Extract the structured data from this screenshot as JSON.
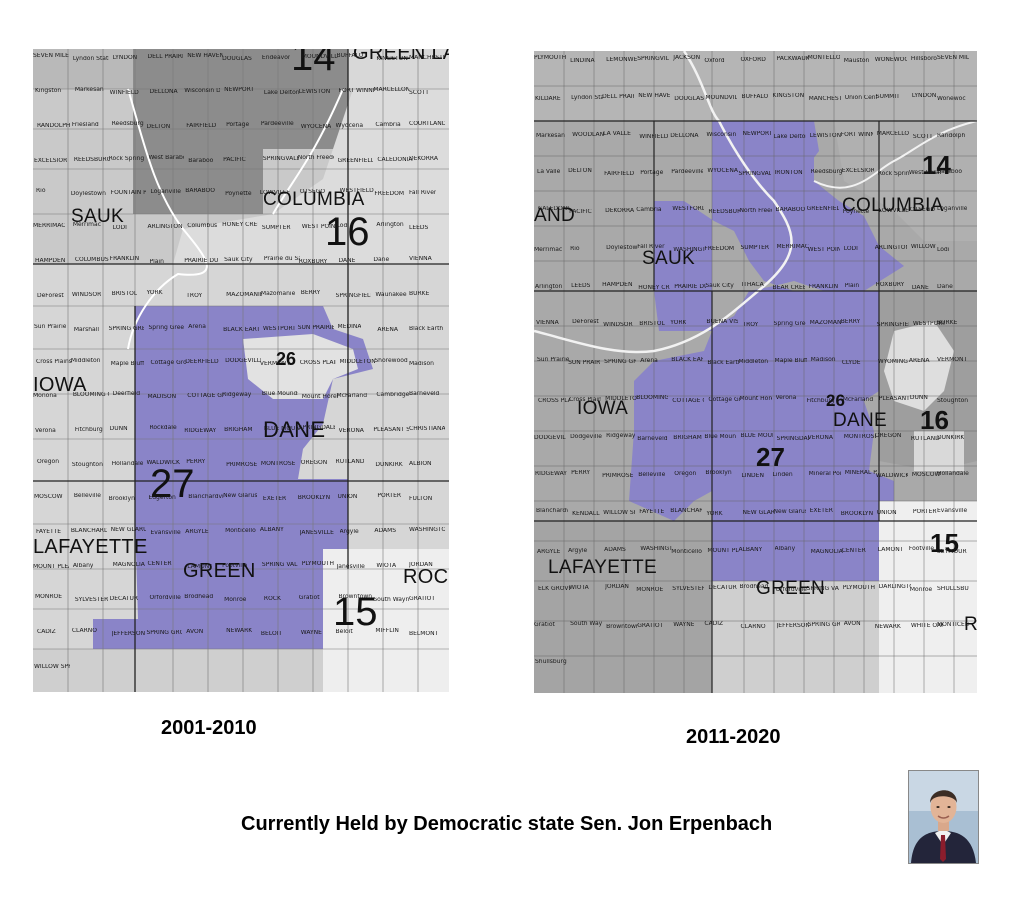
{
  "left_map": {
    "period": "2001-2010",
    "districts": [
      "14",
      "16",
      "27",
      "26",
      "15"
    ],
    "counties": [
      "SAUK",
      "COLUMBIA",
      "DANE",
      "GREEN",
      "IOWA",
      "LAFAYETTE",
      "ROCK",
      "GREEN LAKE"
    ],
    "towns": [
      "SEVEN MILE CREEK",
      "Lyndon Station",
      "LYNDON",
      "DELL PRAIRIE",
      "NEW HAVEN",
      "DOUGLAS",
      "Endeavor",
      "MOUNDVILLE",
      "BUFFALO",
      "KINGSTON",
      "MANCHESTER",
      "Kingston",
      "Markesan",
      "WINFIELD",
      "DELLONA",
      "Wisconsin Dells",
      "NEWPORT",
      "Lake Delton",
      "LEWISTON",
      "FORT WINNEBAGO",
      "MARCELLON",
      "SCOTT",
      "RANDOLPH",
      "Friesland",
      "Reedsburg",
      "DELTON",
      "FAIRFIELD",
      "Portage",
      "Pardeeville",
      "WYOCENA",
      "Wyocena",
      "Cambria",
      "COURTLAND",
      "EXCELSIOR",
      "REEDSBURG",
      "Rock Springs",
      "West Baraboo",
      "Baraboo",
      "PACIFIC",
      "SPRINGVALE",
      "North Freedom",
      "GREENFIELD",
      "CALEDONIA",
      "DEKORRA",
      "Rio",
      "Doylestown",
      "FOUNTAIN PRAIRIE",
      "Loganville",
      "BARABOO",
      "Poynette",
      "LOWVILLE",
      "OTSEGO",
      "WESTFIELD",
      "FREEDOM",
      "Fall River",
      "MERRIMAC",
      "Merrimac",
      "LODI",
      "ARLINGTON",
      "Columbus",
      "HONEY CREEK",
      "SUMPTER",
      "WEST POINT",
      "Lodi",
      "Arlington",
      "LEEDS",
      "HAMPDEN",
      "COLUMBUS",
      "FRANKLIN",
      "Plain",
      "PRAIRIE DU SAC",
      "Sauk City",
      "Prairie du Sac",
      "ROXBURY",
      "DANE",
      "Dane",
      "VIENNA",
      "DeForest",
      "WINDSOR",
      "BRISTOL",
      "YORK",
      "TROY",
      "MAZOMANIE",
      "Mazomanie",
      "BERRY",
      "SPRINGFIELD",
      "Waunakee",
      "BURKE",
      "Sun Prairie",
      "Marshall",
      "SPRING GREEN",
      "Spring Green",
      "Arena",
      "BLACK EARTH",
      "WESTPORT",
      "SUN PRAIRIE",
      "MEDINA",
      "ARENA",
      "Black Earth",
      "Cross Plains",
      "Middleton",
      "Maple Bluff",
      "Cottage Grove",
      "DEERFIELD",
      "DODGEVILLE",
      "VERMONT",
      "CROSS PLAINS",
      "MIDDLETON",
      "Shorewood Hills",
      "Madison",
      "Monona",
      "BLOOMING GROVE",
      "Deerfield",
      "MADISON",
      "COTTAGE GROVE",
      "Ridgeway",
      "Blue Mounds",
      "Mount Horeb",
      "McFarland",
      "Cambridge",
      "Barneveld",
      "Verona",
      "Fitchburg",
      "DUNN",
      "Rockdale",
      "RIDGEWAY",
      "BRIGHAM",
      "BLUE MOUNDS",
      "SPRINGDALE",
      "VERONA",
      "PLEASANT SPRINGS",
      "CHRISTIANA",
      "Oregon",
      "Stoughton",
      "Hollandale",
      "WALDWICK",
      "PERRY",
      "PRIMROSE",
      "MONTROSE",
      "OREGON",
      "RUTLAND",
      "DUNKIRK",
      "ALBION",
      "MOSCOW",
      "Belleville",
      "Brooklyn",
      "Edgerton",
      "Blanchardville",
      "New Glarus",
      "EXETER",
      "BROOKLYN",
      "UNION",
      "PORTER",
      "FULTON",
      "FAYETTE",
      "BLANCHARD",
      "NEW GLARUS",
      "Evansville",
      "ARGYLE",
      "Monticello",
      "ALBANY",
      "JANESVILLE",
      "Argyle",
      "ADAMS",
      "WASHINGTON",
      "MOUNT PLEASANT",
      "Albany",
      "MAGNOLIA",
      "CENTER",
      "LAMONT",
      "Footville",
      "SPRING VALLEY",
      "PLYMOUTH",
      "Janesville",
      "WIOTA",
      "JORDAN",
      "MONROE",
      "SYLVESTER",
      "DECATUR",
      "Orfordville",
      "Brodhead",
      "Monroe",
      "ROCK",
      "Gratiot",
      "Browntown",
      "South Wayne",
      "GRATIOT",
      "CADIZ",
      "CLARNO",
      "JEFFERSON",
      "SPRING GROVE",
      "AVON",
      "NEWARK",
      "BELOIT",
      "WAYNE",
      "Beloit",
      "MIFFLIN",
      "BELMONT",
      "WILLOW SPRINGS"
    ]
  },
  "right_map": {
    "period": "2011-2020",
    "districts": [
      "14",
      "26",
      "16",
      "27",
      "15"
    ],
    "counties": [
      "SAUK",
      "COLUMBIA",
      "DANE",
      "IOWA",
      "GREEN",
      "LAFAYETTE",
      "AND",
      "R"
    ],
    "towns": [
      "PLYMOUTH",
      "LINDINA",
      "LEMONWEIR",
      "SPRINGVILLE",
      "JACKSON",
      "Oxford",
      "OXFORD",
      "PACKWAUKEE",
      "MONTELLO",
      "Mauston",
      "WONEWOC",
      "Hillsboro",
      "SEVEN MILE CREEK",
      "KILDARE",
      "Lyndon Station",
      "DELL PRAIRIE",
      "NEW HAVEN",
      "DOUGLAS",
      "MOUNDVILLE",
      "BUFFALO",
      "KINGSTON",
      "MANCHESTER",
      "Union Center",
      "SUMMIT",
      "LYNDON",
      "Wonewoc",
      "Markesan",
      "WOODLAND",
      "LA VALLE",
      "WINFIELD",
      "DELLONA",
      "Wisconsin Dells",
      "NEWPORT",
      "Lake Delton",
      "LEWISTON",
      "FORT WINNEBAGO",
      "MARCELLON",
      "SCOTT",
      "Randolph",
      "La Valle",
      "DELTON",
      "FAIRFIELD",
      "Portage",
      "Pardeeville",
      "WYOCENA",
      "SPRINGVALE",
      "IRONTON",
      "Reedsburg",
      "EXCELSIOR",
      "Rock Springs",
      "West Baraboo",
      "Baraboo",
      "CALEDONIA",
      "PACIFIC",
      "DEKORRA",
      "Cambria",
      "WESTFORD",
      "REEDSBURG",
      "North Freedom",
      "BARABOO",
      "GREENFIELD",
      "Poynette",
      "LOWVILLE",
      "OTSEGO",
      "Loganville",
      "Merrimac",
      "Rio",
      "Doylestown",
      "Fall River",
      "WASHINGTON",
      "FREEDOM",
      "SUMPTER",
      "MERRIMAC",
      "WEST POINT",
      "LODI",
      "ARLINGTON",
      "WILLOW",
      "Lodi",
      "Arlington",
      "LEEDS",
      "HAMPDEN",
      "HONEY CREEK",
      "PRAIRIE DU SAC",
      "Sauk City",
      "ITHACA",
      "BEAR CREEK",
      "FRANKLIN",
      "Plain",
      "ROXBURY",
      "DANE",
      "Dane",
      "VIENNA",
      "DeForest",
      "WINDSOR",
      "BRISTOL",
      "YORK",
      "BUENA VISTA",
      "TROY",
      "Spring Green",
      "MAZOMANIE",
      "BERRY",
      "SPRINGFIELD",
      "WESTPORT",
      "BURKE",
      "Sun Prairie",
      "SUN PRAIRIE",
      "SPRING GREEN",
      "Arena",
      "BLACK EARTH",
      "Black Earth",
      "Middleton",
      "Maple Bluff",
      "Madison",
      "CLYDE",
      "WYOMING",
      "ARENA",
      "VERMONT",
      "CROSS PLAINS",
      "Cross Plains",
      "MIDDLETON",
      "BLOOMING GROVE",
      "COTTAGE GROVE",
      "Cottage Grove",
      "Mount Horeb",
      "Verona",
      "Fitchburg",
      "McFarland",
      "PLEASANT SPRINGS",
      "DUNN",
      "Stoughton",
      "DODGEVILLE",
      "Dodgeville",
      "Ridgeway",
      "Barneveld",
      "BRIGHAM",
      "Blue Mounds",
      "BLUE MOUNDS",
      "SPRINGDALE",
      "VERONA",
      "MONTROSE",
      "OREGON",
      "RUTLAND",
      "DUNKIRK",
      "RIDGEWAY",
      "PERRY",
      "PRIMROSE",
      "Belleville",
      "Oregon",
      "Brooklyn",
      "LINDEN",
      "Linden",
      "Mineral Point",
      "MINERAL POINT",
      "WALDWICK",
      "MOSCOW",
      "Hollandale",
      "Blanchardville",
      "KENDALL",
      "WILLOW SPRINGS",
      "FAYETTE",
      "BLANCHARD",
      "YORK",
      "NEW GLARUS",
      "New Glarus",
      "EXETER",
      "BROOKLYN",
      "UNION",
      "PORTER",
      "Evansville",
      "ARGYLE",
      "Argyle",
      "ADAMS",
      "WASHINGTON",
      "Monticello",
      "MOUNT PLEASANT",
      "ALBANY",
      "Albany",
      "MAGNOLIA",
      "CENTER",
      "LAMONT",
      "Footville",
      "SEYMOUR",
      "ELK GROVE",
      "WIOTA",
      "JORDAN",
      "MONROE",
      "SYLVESTER",
      "DECATUR",
      "Brodhead",
      "Orfordville",
      "SPRING VALLEY",
      "PLYMOUTH",
      "DARLINGTON",
      "Monroe",
      "SHULLSBURG",
      "Gratiot",
      "South Wayne",
      "Browntown",
      "GRATIOT",
      "WAYNE",
      "CADIZ",
      "CLARNO",
      "JEFFERSON",
      "SPRING GROVE",
      "AVON",
      "NEWARK",
      "WHITE OAK SPRINGS",
      "MONTICELLO",
      "Shullsburg"
    ]
  },
  "caption": "Currently Held by Democratic state Sen. Jon Erpenbach",
  "colors": {
    "district_27": "#8a84c8",
    "county_fill": "#c7c7c7",
    "dark_district": "#8c8c8c",
    "light_area": "#e0e0e0",
    "white_area": "#f2f2f2",
    "page_background": "#ffffff"
  }
}
